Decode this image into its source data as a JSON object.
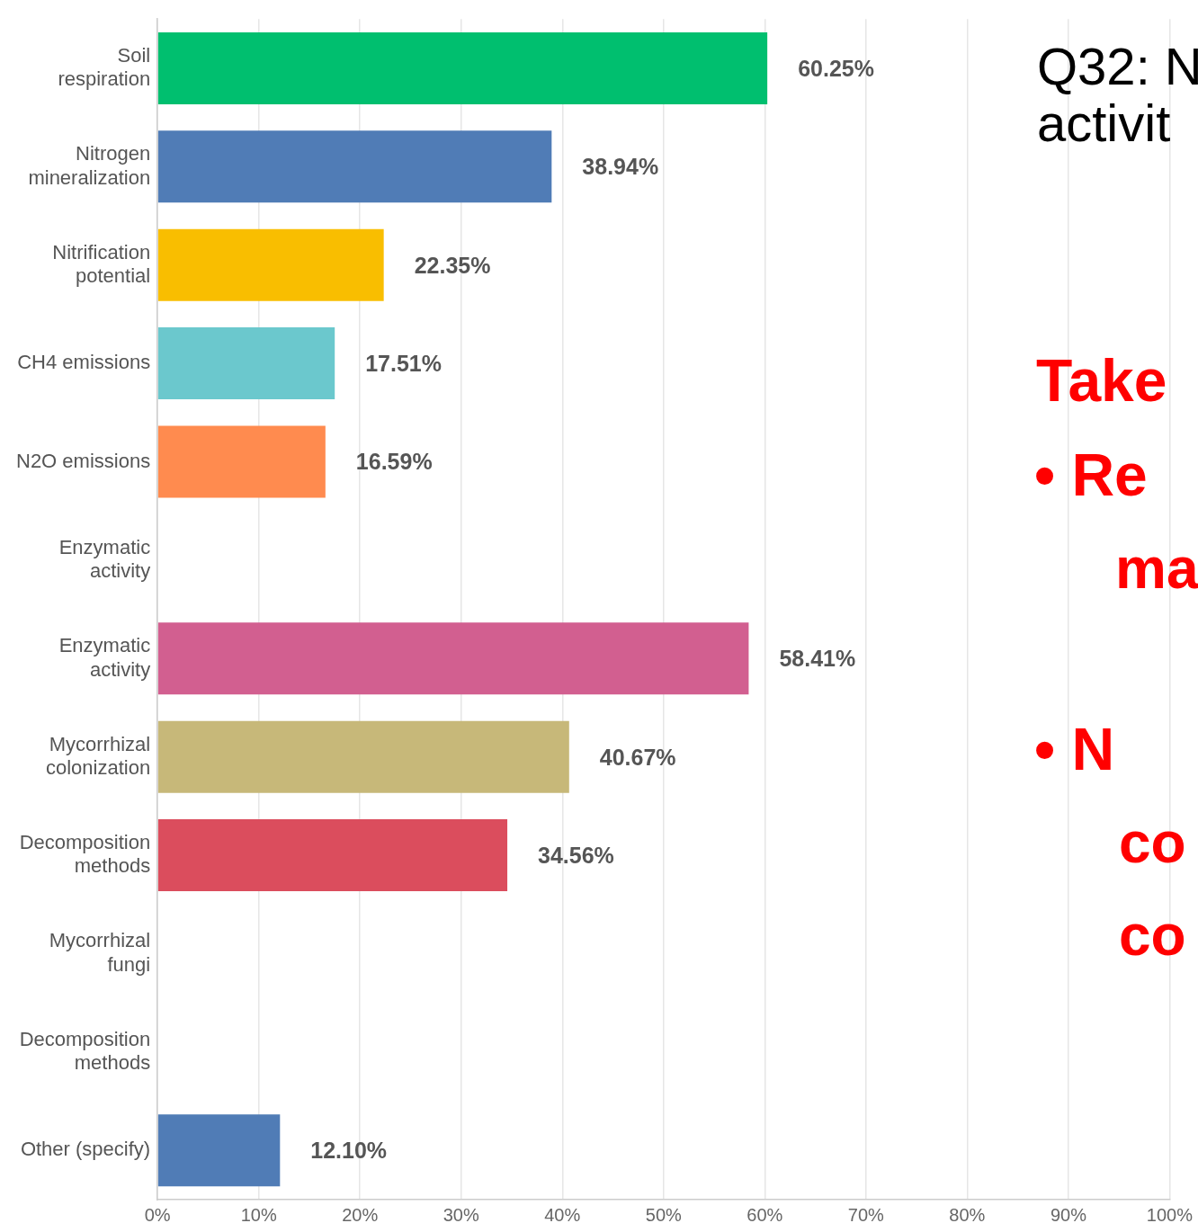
{
  "chart_data": {
    "type": "bar",
    "orientation": "horizontal",
    "categories": [
      "Soil\nrespiration",
      "Nitrogen\nmineralization",
      "Nitrification\npotential",
      "CH4 emissions",
      "N2O emissions",
      "Enzymatic\nactivity",
      "Enzymatic\nactivity",
      "Mycorrhizal\ncolonization",
      "Decomposition\nmethods",
      "Mycorrhizal\nfungi",
      "Decomposition\nmethods",
      "Other (specify)"
    ],
    "values": [
      60.25,
      38.94,
      22.35,
      17.51,
      16.59,
      null,
      58.41,
      40.67,
      34.56,
      null,
      null,
      12.1
    ],
    "colors": [
      "#00bf6f",
      "#507cb6",
      "#f9be00",
      "#6bc8cd",
      "#ff8b4f",
      "#cccccc",
      "#d25f90",
      "#c7b879",
      "#db4d5d",
      "#cccccc",
      "#cccccc",
      "#507cb6"
    ],
    "value_labels": [
      "60.25%",
      "38.94%",
      "22.35%",
      "17.51%",
      "16.59%",
      null,
      "58.41%",
      "40.67%",
      "34.56%",
      null,
      null,
      "12.10%"
    ],
    "xlim": [
      0,
      100
    ],
    "xticks": [
      {
        "value": 0,
        "label": "0%"
      },
      {
        "value": 10,
        "label": "10%"
      },
      {
        "value": 20,
        "label": "20%"
      },
      {
        "value": 30,
        "label": "30%"
      },
      {
        "value": 40,
        "label": "40%"
      },
      {
        "value": 50,
        "label": "50%"
      },
      {
        "value": 60,
        "label": "60%"
      },
      {
        "value": 70,
        "label": "70%"
      },
      {
        "value": 80,
        "label": "80%"
      },
      {
        "value": 90,
        "label": "90%"
      },
      {
        "value": 100,
        "label": "100%"
      }
    ],
    "grid": "x",
    "legend": false,
    "annotations": [
      "Q32: N",
      "activit",
      "Take",
      "• Re",
      "ma",
      "• N",
      "co",
      "co"
    ]
  }
}
